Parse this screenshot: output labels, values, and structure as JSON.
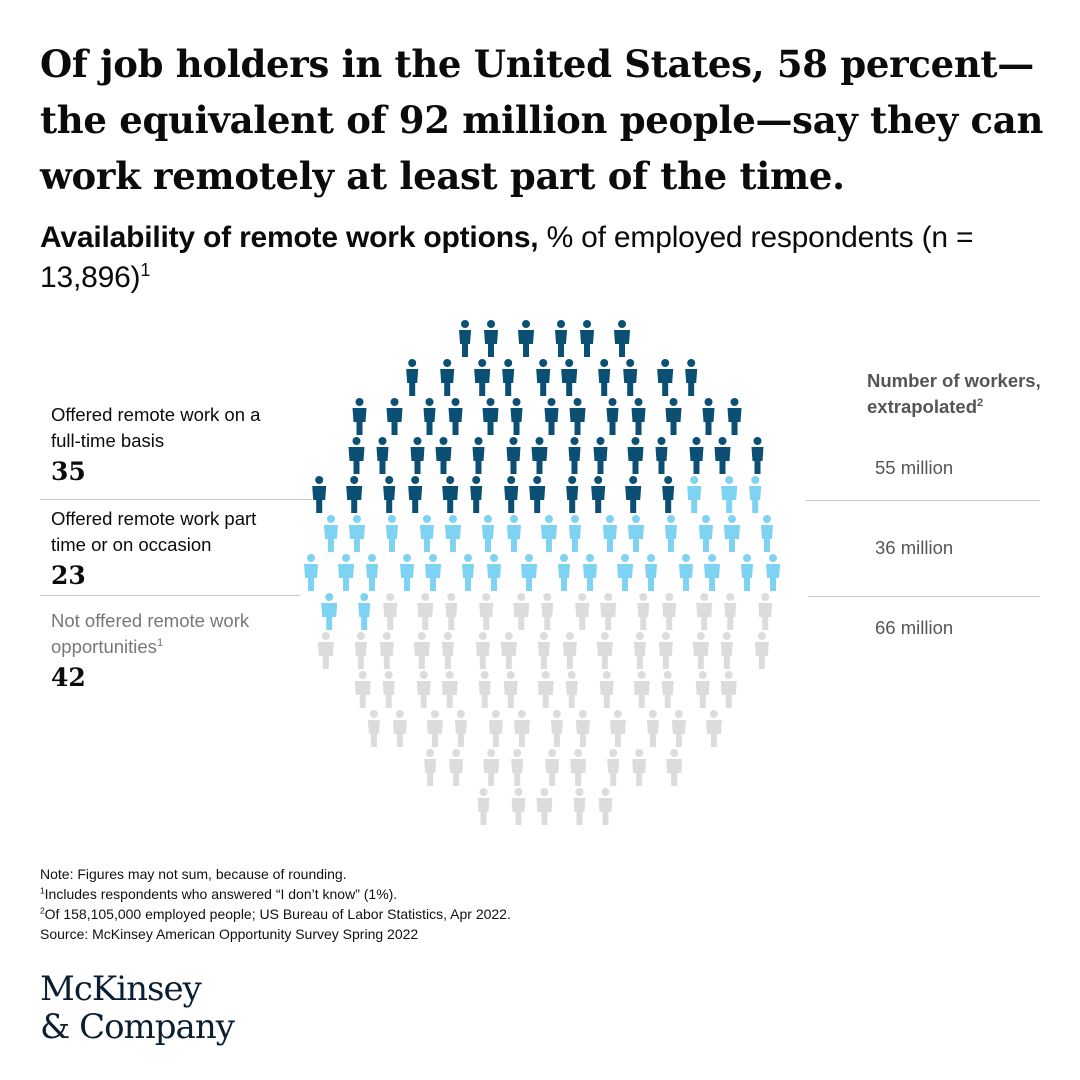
{
  "headline": "Of job holders in the United States, 58 percent—the equivalent of 92 million people—say they can work remotely at least part of the time.",
  "subtitle": {
    "bold": "Availability of remote work options,",
    "rest": " % of employed respondents (n = 13,896)",
    "sup": "1"
  },
  "right_header": {
    "text": "Number of workers, extrapolated",
    "sup": "2"
  },
  "colors": {
    "full_time": "#0b4f74",
    "part_time": "#7fd3f2",
    "not_offered": "#dcdcdc"
  },
  "chart_data": {
    "type": "pictogram",
    "title": "Availability of remote work options",
    "categories": [
      {
        "label": "Offered remote work on a full-time basis",
        "value": 35,
        "workers": "55 million"
      },
      {
        "label": "Offered remote work part time or on occasion",
        "value": 23,
        "workers": "36 million"
      },
      {
        "label": "Not offered remote work opportunities",
        "label_sup": "1",
        "value": 42,
        "workers": "66 million"
      }
    ]
  },
  "notes": [
    {
      "text": "Note: Figures may not sum, because of rounding."
    },
    {
      "sup": "1",
      "text": "Includes respondents who answered “I don’t know” (1%)."
    },
    {
      "sup": "2",
      "text": "Of 158,105,000 employed people; US Bureau of Labor Statistics, Apr 2022."
    },
    {
      "text": "Source: McKinsey American Opportunity Survey Spring 2022"
    }
  ],
  "logo": {
    "line1": "McKinsey",
    "line2": "& Company"
  }
}
